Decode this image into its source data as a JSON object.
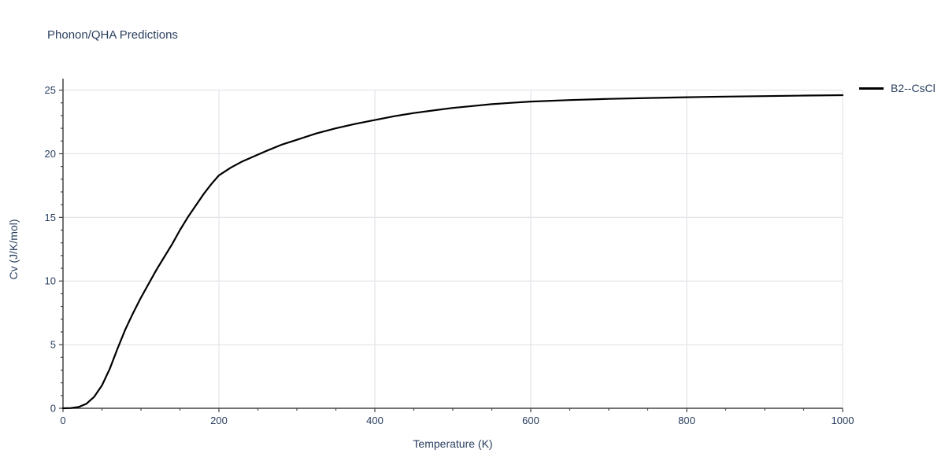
{
  "title": "Phonon/QHA Predictions",
  "colors": {
    "background": "#ffffff",
    "text": "#2a3f5f",
    "grid": "#e4e6ea",
    "axis": "#444444",
    "series": "#000000"
  },
  "legend": {
    "entries": [
      {
        "label": "B2--CsCl",
        "line_color": "#000000"
      }
    ]
  },
  "chart_data": {
    "type": "line",
    "title": "Phonon/QHA Predictions",
    "xlabel": "Temperature (K)",
    "ylabel": "Cv (J/K/mol)",
    "xlim": [
      0,
      1000
    ],
    "ylim": [
      0,
      25.9
    ],
    "x_ticks_major": [
      0,
      200,
      400,
      600,
      800,
      1000
    ],
    "x_tick_labels": [
      "0",
      "200",
      "400",
      "600",
      "800",
      "1000"
    ],
    "x_minor_step": 50,
    "y_ticks_major": [
      0,
      5,
      10,
      15,
      20,
      25
    ],
    "y_tick_labels": [
      "0",
      "5",
      "10",
      "15",
      "20",
      "25"
    ],
    "y_minor_step": 1,
    "grid": true,
    "legend_position": "top-right-outside",
    "series": [
      {
        "name": "B2--CsCl",
        "color": "#000000",
        "x": [
          0,
          10,
          20,
          30,
          40,
          50,
          60,
          70,
          80,
          90,
          100,
          110,
          120,
          130,
          140,
          150,
          160,
          170,
          180,
          190,
          200,
          215,
          230,
          245,
          260,
          280,
          300,
          325,
          350,
          375,
          400,
          425,
          450,
          475,
          500,
          525,
          550,
          575,
          600,
          650,
          700,
          750,
          800,
          850,
          900,
          950,
          1000
        ],
        "y": [
          0,
          0.02,
          0.1,
          0.35,
          0.9,
          1.8,
          3.1,
          4.7,
          6.2,
          7.5,
          8.7,
          9.8,
          10.9,
          11.9,
          12.9,
          14.0,
          15.0,
          15.9,
          16.8,
          17.6,
          18.3,
          18.9,
          19.4,
          19.8,
          20.2,
          20.7,
          21.1,
          21.6,
          22.0,
          22.35,
          22.65,
          22.95,
          23.2,
          23.4,
          23.6,
          23.75,
          23.9,
          24.0,
          24.1,
          24.22,
          24.31,
          24.38,
          24.44,
          24.49,
          24.53,
          24.57,
          24.6
        ]
      }
    ]
  }
}
